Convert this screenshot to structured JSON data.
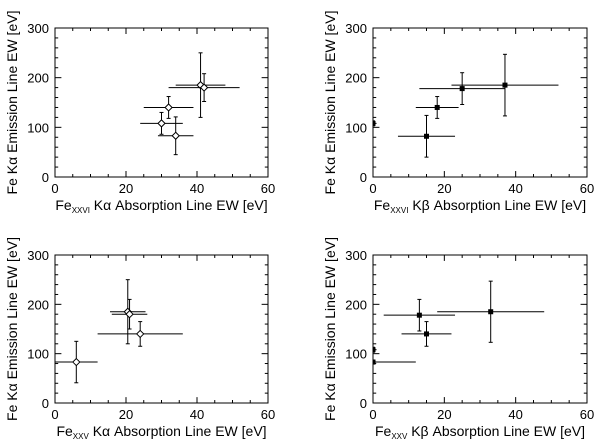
{
  "chart_data": [
    {
      "type": "scatter",
      "marker": "open-diamond",
      "x_label_parts": {
        "prefix": "Fe",
        "sub": "XXVI",
        "suffix": " Kα Absorption Line EW [eV]"
      },
      "y_label": "Fe Kα Emission Line EW [eV]",
      "xlim": [
        0,
        60
      ],
      "ylim": [
        0,
        300
      ],
      "xticks": [
        0,
        20,
        40,
        60
      ],
      "yticks": [
        0,
        100,
        200,
        300
      ],
      "points": [
        {
          "x": 41,
          "y": 185,
          "xerr": 7,
          "yerr": 65
        },
        {
          "x": 42,
          "y": 180,
          "xerr": 10,
          "yerr": 28
        },
        {
          "x": 32,
          "y": 140,
          "xerr": 7,
          "yerr": 22
        },
        {
          "x": 30,
          "y": 108,
          "xerr": 6,
          "yerr": 22
        },
        {
          "x": 34,
          "y": 83,
          "xerr": 5,
          "yerr": 38
        }
      ]
    },
    {
      "type": "scatter",
      "marker": "filled-square",
      "x_label_parts": {
        "prefix": "Fe",
        "sub": "XXVI",
        "suffix": " Kβ Absorption Line EW [eV]"
      },
      "y_label": "Fe Kα Emission Line EW [eV]",
      "xlim": [
        0,
        60
      ],
      "ylim": [
        0,
        300
      ],
      "xticks": [
        0,
        20,
        40,
        60
      ],
      "yticks": [
        0,
        100,
        200,
        300
      ],
      "points": [
        {
          "x": 37,
          "y": 185,
          "xerr": 15,
          "yerr": 62
        },
        {
          "x": 25,
          "y": 178,
          "xerr": 12,
          "yerr": 32
        },
        {
          "x": 18,
          "y": 140,
          "xerr": 6,
          "yerr": 22
        },
        {
          "x": 15,
          "y": 82,
          "xerr": 8,
          "yerr": 42
        },
        {
          "x": 0,
          "y": 108,
          "xerr": 1,
          "yerr": 5
        }
      ]
    },
    {
      "type": "scatter",
      "marker": "open-diamond",
      "x_label_parts": {
        "prefix": "Fe",
        "sub": "XXV",
        "suffix": " Kα Absorption Line EW [eV]"
      },
      "y_label": "Fe Kα Emission Line EW [eV]",
      "xlim": [
        0,
        60
      ],
      "ylim": [
        0,
        300
      ],
      "xticks": [
        0,
        20,
        40,
        60
      ],
      "yticks": [
        0,
        100,
        200,
        300
      ],
      "points": [
        {
          "x": 20.5,
          "y": 185,
          "xerr": 5,
          "yerr": 65
        },
        {
          "x": 21,
          "y": 180,
          "xerr": 5,
          "yerr": 30
        },
        {
          "x": 24,
          "y": 140,
          "xerr": 12,
          "yerr": 25
        },
        {
          "x": 6,
          "y": 83,
          "xerr": 6,
          "yerr": 42
        }
      ]
    },
    {
      "type": "scatter",
      "marker": "filled-square",
      "x_label_parts": {
        "prefix": "Fe",
        "sub": "XXV",
        "suffix": " Kβ Absorption Line EW [eV]"
      },
      "y_label": "Fe Kα Emission Line EW [eV]",
      "xlim": [
        0,
        60
      ],
      "ylim": [
        0,
        300
      ],
      "xticks": [
        0,
        20,
        40,
        60
      ],
      "yticks": [
        0,
        100,
        200,
        300
      ],
      "points": [
        {
          "x": 33,
          "y": 185,
          "xerr": 15,
          "yerr": 62
        },
        {
          "x": 13,
          "y": 178,
          "xerr": 10,
          "yerr": 32
        },
        {
          "x": 15,
          "y": 140,
          "xerr": 7,
          "yerr": 25
        },
        {
          "x": 0,
          "y": 83,
          "xerr": 12,
          "yerr": 4
        },
        {
          "x": 0,
          "y": 108,
          "xerr": 1,
          "yerr": 5
        }
      ]
    }
  ]
}
